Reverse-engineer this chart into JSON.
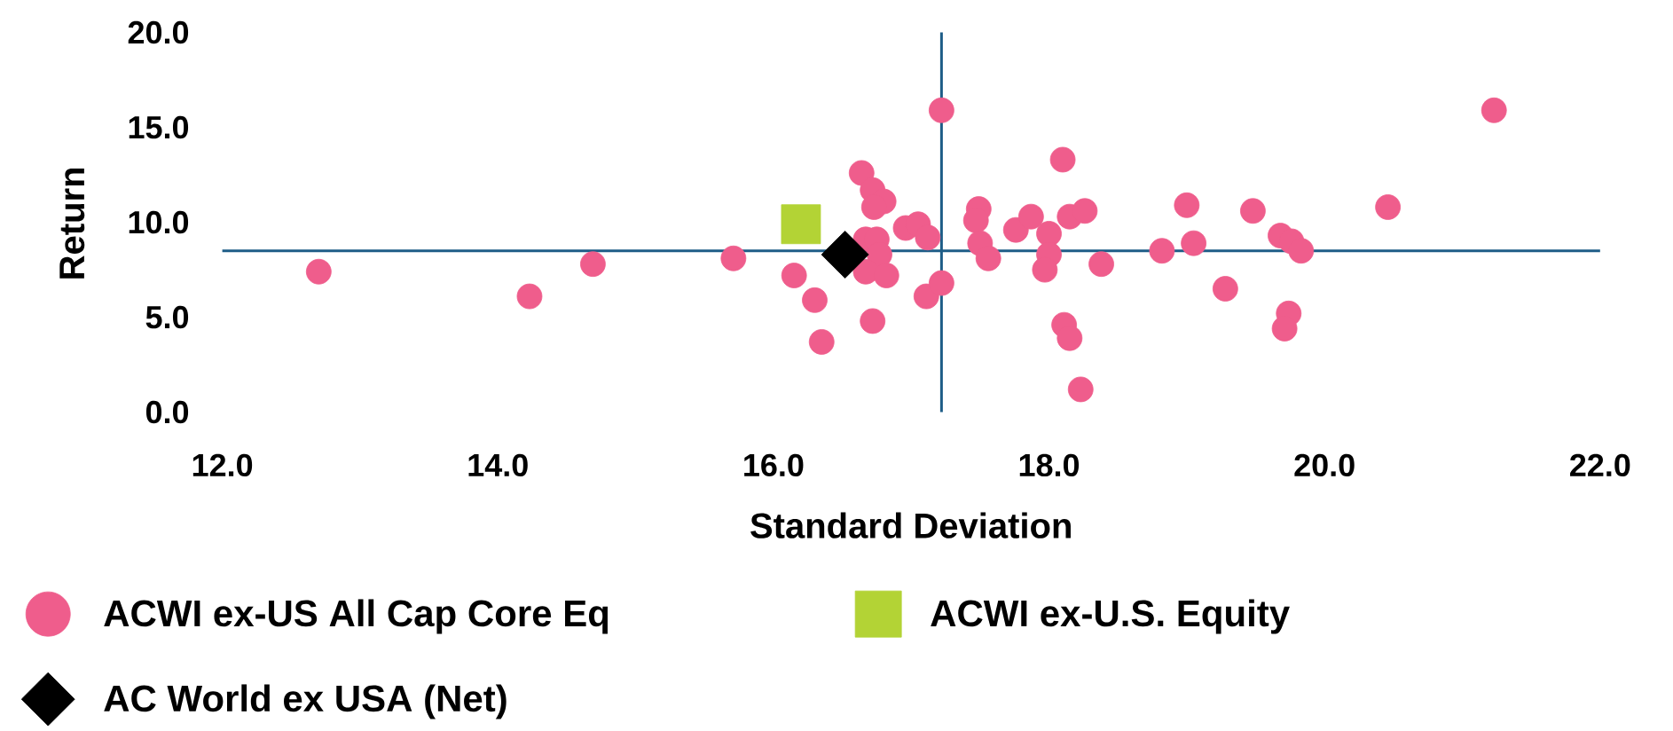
{
  "chart_data": {
    "type": "scatter",
    "xlabel": "Standard Deviation",
    "ylabel": "Return",
    "xlim": [
      12,
      22
    ],
    "ylim": [
      0,
      20
    ],
    "xticks": [
      {
        "value": 12,
        "label": "12.0"
      },
      {
        "value": 14,
        "label": "14.0"
      },
      {
        "value": 16,
        "label": "16.0"
      },
      {
        "value": 18,
        "label": "18.0"
      },
      {
        "value": 20,
        "label": "20.0"
      },
      {
        "value": 22,
        "label": "22.0"
      }
    ],
    "yticks": [
      {
        "value": 0,
        "label": "0.0"
      },
      {
        "value": 5,
        "label": "5.0"
      },
      {
        "value": 10,
        "label": "10.0"
      },
      {
        "value": 15,
        "label": "15.0"
      },
      {
        "value": 20,
        "label": "20.0"
      }
    ],
    "legend": "bottom",
    "ref_lines": [
      {
        "axis": "y",
        "value": 8.5,
        "color": "#1e5d87"
      },
      {
        "axis": "x",
        "value": 17.22,
        "color": "#1e5d87"
      }
    ],
    "series": [
      {
        "name": "ACWI ex-US All Cap Core Eq",
        "color": "#ef5d8c",
        "marker": "circle",
        "x": [
          12.7,
          14.23,
          14.69,
          15.71,
          16.15,
          16.3,
          16.35,
          16.64,
          16.72,
          16.8,
          16.73,
          16.67,
          16.75,
          16.77,
          16.67,
          16.82,
          16.72,
          16.96,
          17.05,
          17.12,
          17.11,
          17.22,
          17.22,
          17.49,
          17.47,
          17.5,
          17.56,
          17.76,
          17.87,
          18.0,
          18.0,
          17.97,
          18.1,
          18.15,
          18.26,
          18.11,
          18.15,
          18.23,
          18.38,
          18.82,
          19.0,
          19.05,
          19.28,
          19.48,
          19.68,
          19.76,
          19.83,
          19.74,
          19.71,
          20.46,
          21.23
        ],
        "values": [
          7.4,
          6.1,
          7.8,
          8.1,
          7.2,
          5.9,
          3.7,
          12.6,
          11.7,
          11.1,
          10.8,
          9.1,
          9.1,
          8.3,
          7.4,
          7.2,
          4.8,
          9.7,
          9.9,
          9.2,
          6.1,
          6.8,
          15.9,
          10.7,
          10.1,
          8.9,
          8.1,
          9.6,
          10.3,
          9.4,
          8.3,
          7.5,
          13.3,
          10.3,
          10.6,
          4.6,
          3.9,
          1.2,
          7.8,
          8.5,
          10.9,
          8.9,
          6.5,
          10.6,
          9.3,
          9.0,
          8.5,
          5.2,
          4.4,
          10.8,
          15.9
        ]
      },
      {
        "name": "ACWI ex-U.S. Equity",
        "color": "#b3d335",
        "marker": "square",
        "x": [
          16.2
        ],
        "values": [
          9.9
        ]
      },
      {
        "name": "AC World ex USA (Net)",
        "color": "#000000",
        "marker": "diamond",
        "x": [
          16.52
        ],
        "values": [
          8.3
        ]
      }
    ]
  }
}
